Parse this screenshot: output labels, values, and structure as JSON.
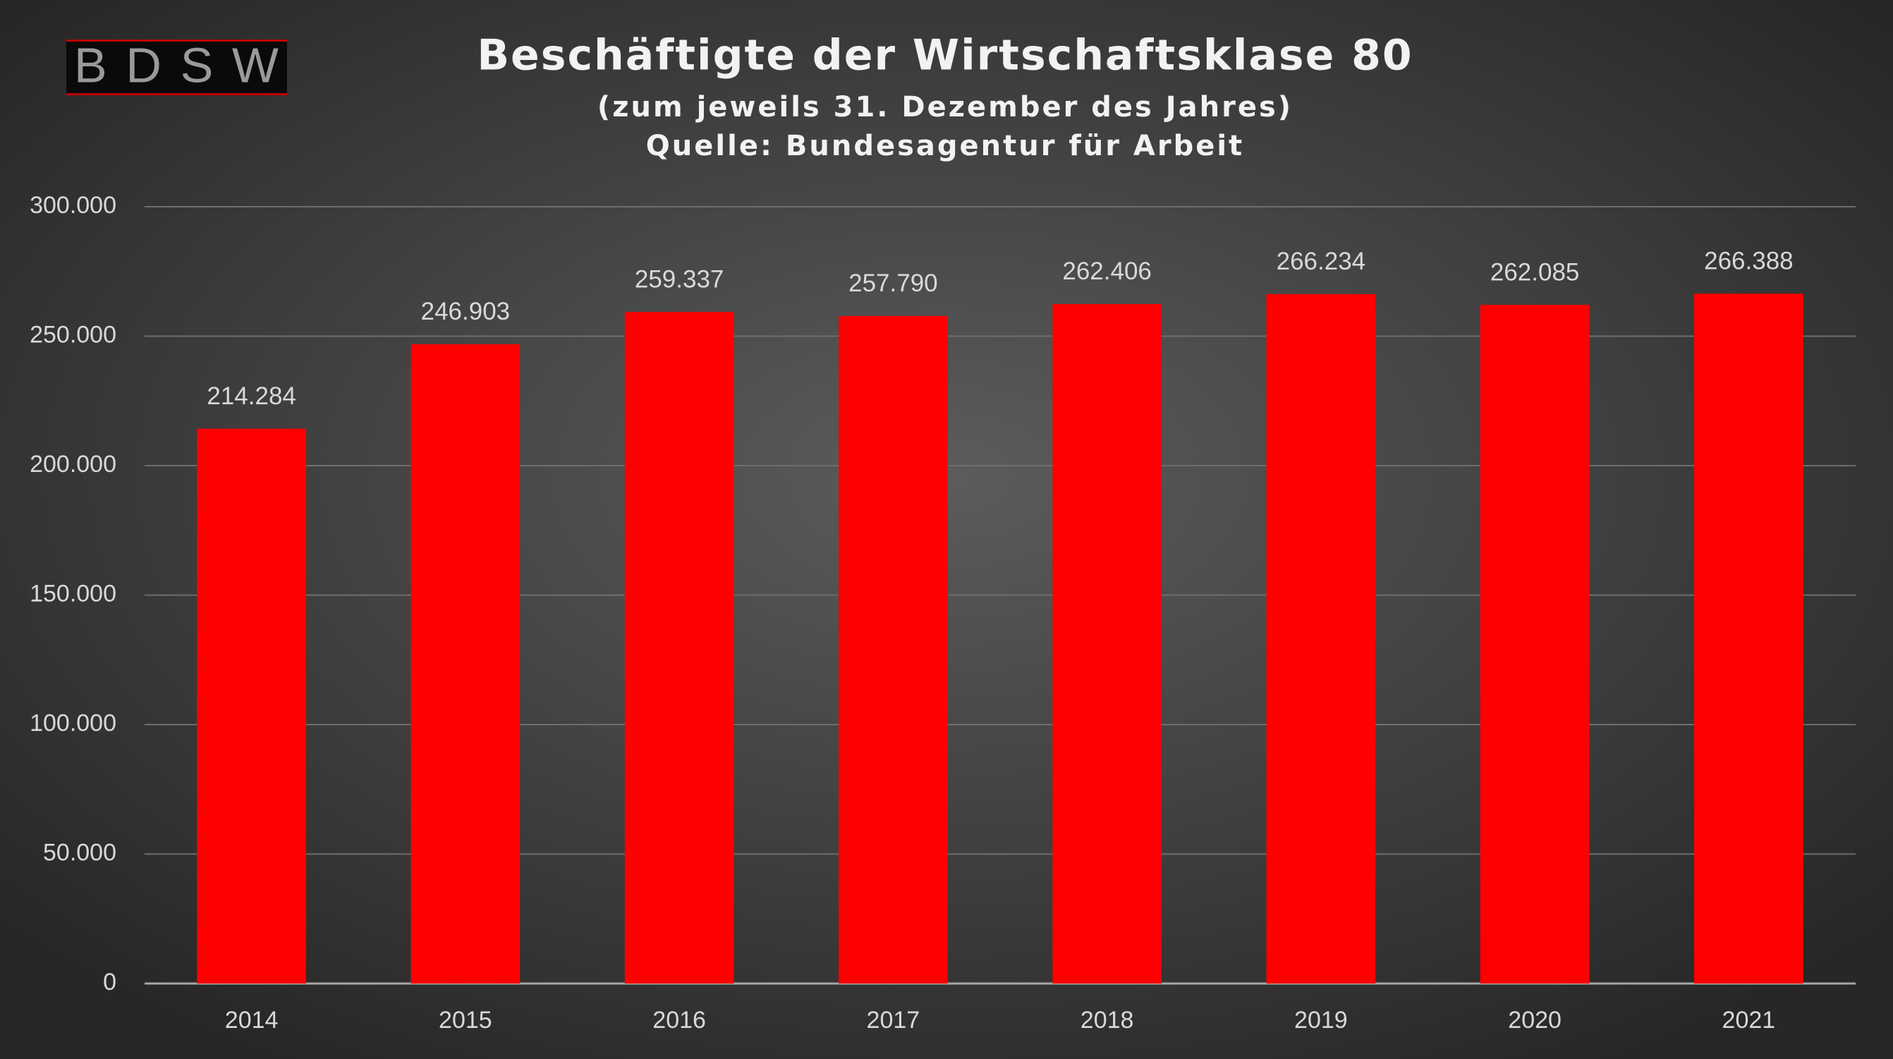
{
  "logo": "BDSW",
  "chart_data": {
    "type": "bar",
    "title": "Beschäftigte der Wirtschaftsklase 80",
    "subtitle": "(zum jeweils 31. Dezember des Jahres)",
    "source": "Quelle: Bundesagentur für Arbeit",
    "categories": [
      "2014",
      "2015",
      "2016",
      "2017",
      "2018",
      "2019",
      "2020",
      "2021"
    ],
    "values": [
      214284,
      246903,
      259337,
      257790,
      262406,
      266234,
      262085,
      266388
    ],
    "value_labels": [
      "214.284",
      "246.903",
      "259.337",
      "257.790",
      "262.406",
      "266.234",
      "262.085",
      "266.388"
    ],
    "color": "#ff0000",
    "ylim": [
      0,
      300000
    ],
    "yticks": [
      0,
      {
        "value": 50000,
        "label": "50.000"
      },
      {
        "value": 100000,
        "label": "100.000"
      },
      {
        "value": 150000,
        "label": "150.000"
      },
      {
        "value": 200000,
        "label": "200.000"
      },
      {
        "value": 250000,
        "label": "250.000"
      },
      {
        "value": 300000,
        "label": "300.000"
      }
    ],
    "grid": true
  }
}
